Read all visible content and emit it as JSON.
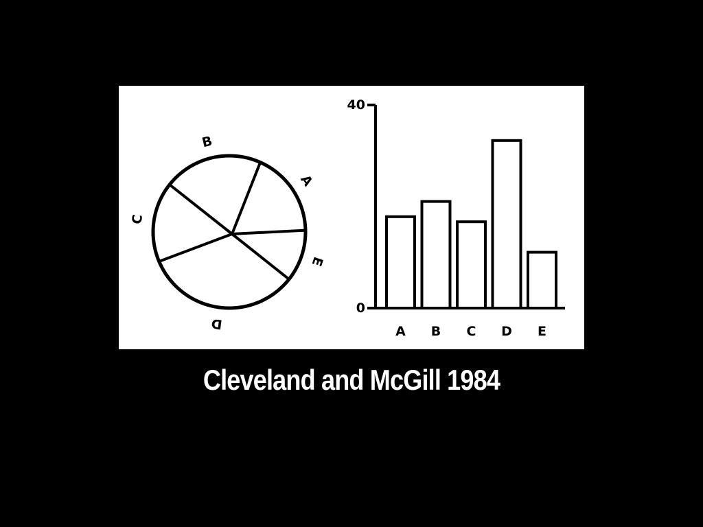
{
  "caption": "Cleveland and McGill 1984",
  "chart_data": [
    {
      "type": "pie",
      "categories": [
        "A",
        "B",
        "C",
        "D",
        "E"
      ],
      "values": [
        18,
        21,
        17,
        33,
        11
      ],
      "title": "",
      "legend": "labels around slices"
    },
    {
      "type": "bar",
      "categories": [
        "A",
        "B",
        "C",
        "D",
        "E"
      ],
      "values": [
        18,
        21,
        17,
        33,
        11
      ],
      "title": "",
      "xlabel": "",
      "ylabel": "",
      "ylim": [
        0,
        40
      ],
      "y_ticks": [
        0,
        40
      ],
      "grid": false
    }
  ]
}
